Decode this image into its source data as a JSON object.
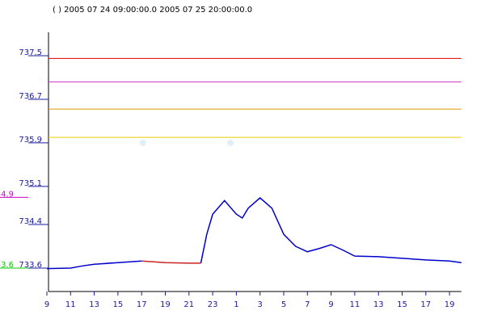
{
  "chart_data": {
    "type": "line",
    "title": "( ) 2005 07 24 09:00:00.0   2005 07 25 20:00:00.0",
    "x": [
      0,
      2,
      3,
      4,
      6,
      8,
      10,
      12,
      13,
      13.5,
      14,
      15,
      16,
      16.5,
      17,
      18,
      19,
      20,
      21,
      22,
      23,
      24,
      25,
      26,
      28,
      30,
      32,
      34,
      35
    ],
    "series": [
      {
        "color": "#0000cc",
        "values": [
          733.59,
          733.6,
          733.64,
          733.67,
          733.7,
          733.73,
          null,
          null,
          733.69,
          734.22,
          734.59,
          734.84,
          734.59,
          734.52,
          734.7,
          734.89,
          734.7,
          734.22,
          734.0,
          733.9,
          733.96,
          734.03,
          733.93,
          733.82,
          733.81,
          733.78,
          733.75,
          733.73,
          733.7
        ]
      },
      {
        "color": "#cc2222",
        "values": [
          null,
          null,
          null,
          null,
          null,
          733.73,
          733.7,
          733.69,
          733.69,
          null,
          null,
          null,
          null,
          null,
          null,
          null,
          null,
          null,
          null,
          null,
          null,
          null,
          null,
          null,
          null,
          null,
          null,
          null,
          null
        ]
      }
    ],
    "points": {
      "x": [
        8.1,
        15.5
      ],
      "values": [
        735.9,
        735.9
      ],
      "color": "#e0f0f8"
    },
    "thresholds": {
      "values": [
        737.45,
        737.02,
        736.52,
        736.0
      ],
      "colors": [
        "#dd0000",
        "#cc33cc",
        "#dd9900",
        "#eecc00"
      ]
    },
    "left_markers": {
      "values": [
        734.9,
        733.6
      ],
      "colors": [
        "#cc00cc",
        "#00cc00"
      ]
    },
    "xlim": [
      0,
      35
    ],
    "xticks": [
      {
        "value": 0,
        "label": "9"
      },
      {
        "value": 2,
        "label": "11"
      },
      {
        "value": 4,
        "label": "13"
      },
      {
        "value": 6,
        "label": "15"
      },
      {
        "value": 8,
        "label": "17"
      },
      {
        "value": 10,
        "label": "19"
      },
      {
        "value": 12,
        "label": "21"
      },
      {
        "value": 14,
        "label": "23"
      },
      {
        "value": 16,
        "label": "1"
      },
      {
        "value": 18,
        "label": "3"
      },
      {
        "value": 20,
        "label": "5"
      },
      {
        "value": 22,
        "label": "7"
      },
      {
        "value": 24,
        "label": "9"
      },
      {
        "value": 26,
        "label": "11"
      },
      {
        "value": 28,
        "label": "13"
      },
      {
        "value": 30,
        "label": "15"
      },
      {
        "value": 32,
        "label": "17"
      },
      {
        "value": 34,
        "label": "19"
      }
    ],
    "ylim": [
      733.17,
      737.93
    ],
    "yticks": [
      737.5,
      736.7,
      735.9,
      735.1,
      734.4,
      733.6
    ],
    "tick_color": "#1a1aa0"
  }
}
